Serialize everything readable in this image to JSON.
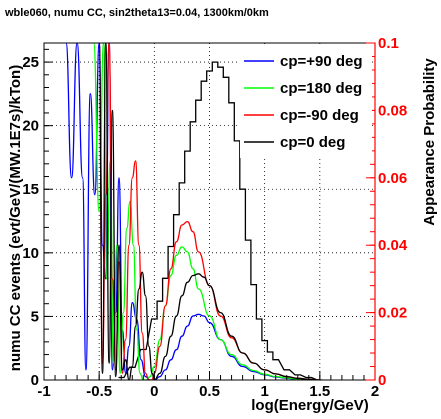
{
  "chart_data": {
    "type": "line",
    "title": "wble060, numu CC, sin2theta13=0.04, 1300km/0km",
    "xlabel": "log(Energy/GeV)",
    "ylabel_left": "numu CC events (evt/GeV/(MW.1E7s)/kTon)",
    "ylabel_right": "Appearance Probability",
    "xlim": [
      -1,
      2
    ],
    "ylim_left": [
      0,
      26.5
    ],
    "ylim_right": [
      0,
      0.1
    ],
    "x_ticks": [
      "-1",
      "-0.5",
      "0",
      "0.5",
      "1",
      "1.5",
      "2"
    ],
    "y_ticks_left": [
      "0",
      "5",
      "10",
      "15",
      "20",
      "25"
    ],
    "y_ticks_right": [
      "0",
      "0.02",
      "0.04",
      "0.06",
      "0.08",
      "0.1"
    ],
    "grid": true,
    "legend_position": "top-right",
    "colors": {
      "cp_p90": "#0000ff",
      "cp_180": "#00ff00",
      "cp_m90": "#ff0000",
      "cp_0": "#000000",
      "right_axis": "#ff0000"
    },
    "histogram": {
      "name": "numu CC events",
      "axis": "left",
      "x": [
        -0.3,
        -0.2,
        -0.1,
        0.0,
        0.05,
        0.1,
        0.15,
        0.2,
        0.25,
        0.3,
        0.35,
        0.4,
        0.45,
        0.5,
        0.55,
        0.6,
        0.65,
        0.7,
        0.75,
        0.8,
        0.85,
        0.9,
        0.95,
        1.0,
        1.05,
        1.1,
        1.2,
        1.3,
        1.4,
        1.5
      ],
      "y": [
        0.2,
        1.0,
        2.4,
        4.8,
        6.2,
        8.0,
        10.5,
        13.0,
        15.5,
        18.0,
        20.3,
        22.0,
        23.5,
        24.3,
        25.0,
        24.6,
        23.8,
        21.8,
        18.8,
        15.0,
        11.0,
        7.5,
        4.8,
        3.1,
        2.2,
        1.6,
        0.8,
        0.4,
        0.2,
        0.0
      ]
    },
    "series": [
      {
        "name": "cp=+90 deg",
        "axis": "right",
        "x": [
          -0.8,
          -0.75,
          -0.7,
          -0.65,
          -0.62,
          -0.58,
          -0.54,
          -0.5,
          -0.47,
          -0.44,
          -0.41,
          -0.38,
          -0.35,
          -0.32,
          -0.29,
          -0.26,
          -0.23,
          -0.2,
          -0.16,
          -0.12,
          -0.08,
          -0.04,
          0.0,
          0.05,
          0.1,
          0.15,
          0.2,
          0.25,
          0.3,
          0.35,
          0.4,
          0.45,
          0.5,
          0.6,
          0.7,
          0.8,
          0.9,
          1.0,
          1.1,
          1.2,
          1.3,
          1.4,
          1.5
        ],
        "y": [
          0.1,
          0.06,
          0.1,
          0.06,
          0.003,
          0.085,
          0.055,
          0.1,
          0.04,
          0.03,
          0.1,
          0.003,
          0.02,
          0.06,
          0.015,
          0.002,
          0.01,
          0.023,
          0.018,
          0.006,
          0.001,
          0.0,
          0.0,
          0.001,
          0.003,
          0.006,
          0.009,
          0.013,
          0.016,
          0.019,
          0.0195,
          0.019,
          0.017,
          0.012,
          0.007,
          0.004,
          0.0025,
          0.0015,
          0.0009,
          0.0005,
          0.0002,
          0.0001,
          0.0
        ]
      },
      {
        "name": "cp=180 deg",
        "axis": "right",
        "x": [
          -0.55,
          -0.5,
          -0.46,
          -0.43,
          -0.4,
          -0.37,
          -0.34,
          -0.31,
          -0.28,
          -0.25,
          -0.22,
          -0.19,
          -0.16,
          -0.13,
          -0.1,
          -0.07,
          -0.04,
          0.0,
          0.05,
          0.1,
          0.15,
          0.2,
          0.25,
          0.3,
          0.35,
          0.4,
          0.5,
          0.6,
          0.7,
          0.8,
          0.9,
          1.0,
          1.1,
          1.2,
          1.3,
          1.4,
          1.5
        ],
        "y": [
          0.1,
          0.05,
          0.1,
          0.03,
          0.065,
          0.005,
          0.04,
          0.002,
          0.02,
          0.045,
          0.053,
          0.04,
          0.015,
          0.002,
          0.0,
          0.0,
          0.001,
          0.004,
          0.012,
          0.022,
          0.031,
          0.037,
          0.0395,
          0.038,
          0.033,
          0.027,
          0.019,
          0.012,
          0.0075,
          0.0045,
          0.0028,
          0.0017,
          0.001,
          0.0006,
          0.0003,
          0.0001,
          0.0
        ]
      },
      {
        "name": "cp=-90 deg",
        "axis": "right",
        "x": [
          -0.5,
          -0.47,
          -0.44,
          -0.41,
          -0.38,
          -0.35,
          -0.32,
          -0.29,
          -0.26,
          -0.23,
          -0.2,
          -0.17,
          -0.14,
          -0.11,
          -0.08,
          -0.05,
          -0.02,
          0.0,
          0.05,
          0.1,
          0.15,
          0.2,
          0.25,
          0.3,
          0.35,
          0.4,
          0.5,
          0.6,
          0.7,
          0.8,
          0.9,
          1.0,
          1.1,
          1.2,
          1.3,
          1.4,
          1.5
        ],
        "y": [
          0.1,
          0.005,
          0.055,
          0.1,
          0.03,
          0.003,
          0.035,
          0.002,
          0.012,
          0.04,
          0.06,
          0.065,
          0.04,
          0.014,
          0.002,
          0.0,
          0.0,
          0.002,
          0.01,
          0.022,
          0.033,
          0.041,
          0.046,
          0.047,
          0.044,
          0.038,
          0.028,
          0.019,
          0.0125,
          0.008,
          0.005,
          0.003,
          0.0018,
          0.001,
          0.0005,
          0.0002,
          0.0
        ]
      },
      {
        "name": "cp=0 deg",
        "axis": "right",
        "x": [
          -0.5,
          -0.47,
          -0.44,
          -0.41,
          -0.38,
          -0.35,
          -0.32,
          -0.29,
          -0.26,
          -0.23,
          -0.2,
          -0.17,
          -0.14,
          -0.11,
          -0.08,
          -0.05,
          -0.02,
          0.0,
          0.05,
          0.1,
          0.15,
          0.2,
          0.25,
          0.3,
          0.35,
          0.4,
          0.45,
          0.5,
          0.6,
          0.7,
          0.8,
          0.9,
          1.0,
          1.1,
          1.2,
          1.3,
          1.4,
          1.5
        ],
        "y": [
          0.1,
          0.002,
          0.1,
          0.005,
          0.08,
          0.001,
          0.04,
          0.003,
          0.006,
          0.0,
          0.004,
          0.016,
          0.027,
          0.032,
          0.025,
          0.01,
          0.002,
          0.0,
          0.002,
          0.007,
          0.013,
          0.019,
          0.025,
          0.029,
          0.031,
          0.0315,
          0.0305,
          0.028,
          0.02,
          0.013,
          0.008,
          0.005,
          0.003,
          0.0018,
          0.001,
          0.0005,
          0.0002,
          0.0
        ]
      }
    ]
  }
}
